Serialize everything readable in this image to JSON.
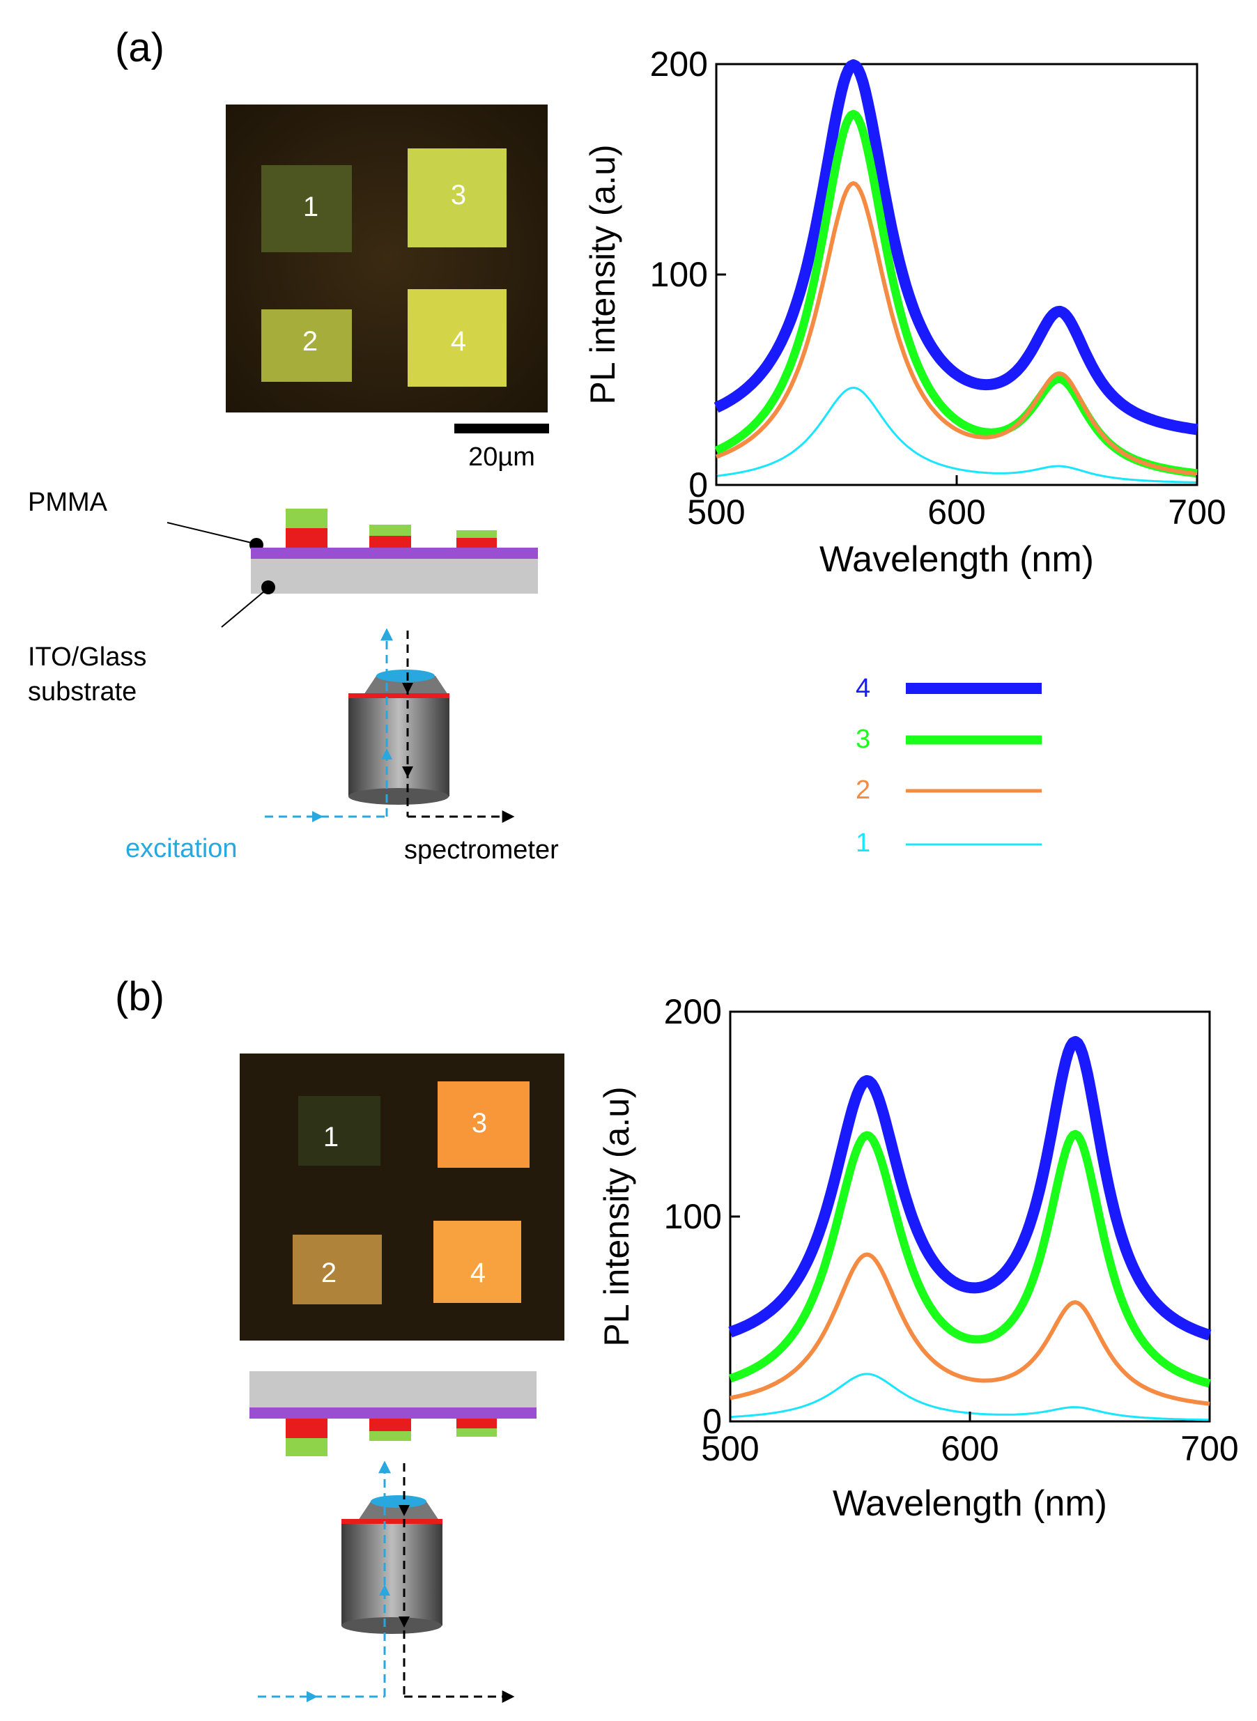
{
  "panels": {
    "a": {
      "label": "(a)",
      "micrograph": {
        "square_labels": [
          "1",
          "2",
          "3",
          "4"
        ],
        "scale_bar": "20µm"
      },
      "schematic": {
        "layer_label_top": "PMMA",
        "layer_label_bottom_1": "ITO/Glass",
        "layer_label_bottom_2": "substrate",
        "excitation": "excitation",
        "spectrometer": "spectrometer"
      }
    },
    "b": {
      "label": "(b)",
      "micrograph": {
        "square_labels": [
          "1",
          "2",
          "3",
          "4"
        ]
      }
    }
  },
  "legend": {
    "entries": [
      {
        "label": "4",
        "color": "#1a1aff"
      },
      {
        "label": "3",
        "color": "#1aff1a"
      },
      {
        "label": "2",
        "color": "#f58a42"
      },
      {
        "label": "1",
        "color": "#1ae5ff"
      }
    ]
  },
  "colors": {
    "excitation": "#29a8e0",
    "red_layer": "#e81c1c",
    "green_layer": "#8ed34a",
    "pmma": "#9a4fd3",
    "substrate": "#c8c8c8"
  },
  "chart_data": [
    {
      "type": "line",
      "xlabel": "Wavelength (nm)",
      "ylabel": "PL intensity (a.u)",
      "xlim": [
        500,
        700
      ],
      "ylim": [
        0,
        200
      ],
      "xticks": [
        500,
        600,
        700
      ],
      "yticks": [
        0,
        100,
        200
      ],
      "grid": false,
      "legend": "separate, below-right of chart",
      "series": [
        {
          "name": "4",
          "color": "#1a1aff",
          "baseline": 20,
          "peaks": [
            [
              557,
              178,
              18
            ],
            [
              643,
              55,
              15
            ]
          ]
        },
        {
          "name": "3",
          "color": "#1aff1a",
          "baseline": 0,
          "peaks": [
            [
              557,
              175,
              18
            ],
            [
              643,
              43,
              15
            ]
          ]
        },
        {
          "name": "2",
          "color": "#f58a42",
          "baseline": 0,
          "peaks": [
            [
              557,
              142,
              18
            ],
            [
              643,
              47,
              15
            ]
          ]
        },
        {
          "name": "1",
          "color": "#1ae5ff",
          "baseline": 0,
          "peaks": [
            [
              557,
              46,
              18
            ],
            [
              643,
              7,
              15
            ]
          ]
        }
      ]
    },
    {
      "type": "line",
      "xlabel": "Wavelength (nm)",
      "ylabel": "PL intensity (a.u)",
      "xlim": [
        500,
        700
      ],
      "ylim": [
        0,
        200
      ],
      "xticks": [
        500,
        600,
        700
      ],
      "yticks": [
        0,
        100,
        200
      ],
      "grid": false,
      "series": [
        {
          "name": "4",
          "color": "#1a1aff",
          "baseline": 30,
          "peaks": [
            [
              557,
              132,
              18
            ],
            [
              644,
              150,
              15
            ]
          ]
        },
        {
          "name": "3",
          "color": "#1aff1a",
          "baseline": 8,
          "peaks": [
            [
              557,
              128,
              18
            ],
            [
              644,
              127,
              15
            ]
          ]
        },
        {
          "name": "2",
          "color": "#f58a42",
          "baseline": 4,
          "peaks": [
            [
              557,
              76,
              18
            ],
            [
              644,
              51,
              15
            ]
          ]
        },
        {
          "name": "1",
          "color": "#1ae5ff",
          "baseline": 0,
          "peaks": [
            [
              557,
              23,
              18
            ],
            [
              644,
              6,
              15
            ]
          ]
        }
      ]
    }
  ]
}
